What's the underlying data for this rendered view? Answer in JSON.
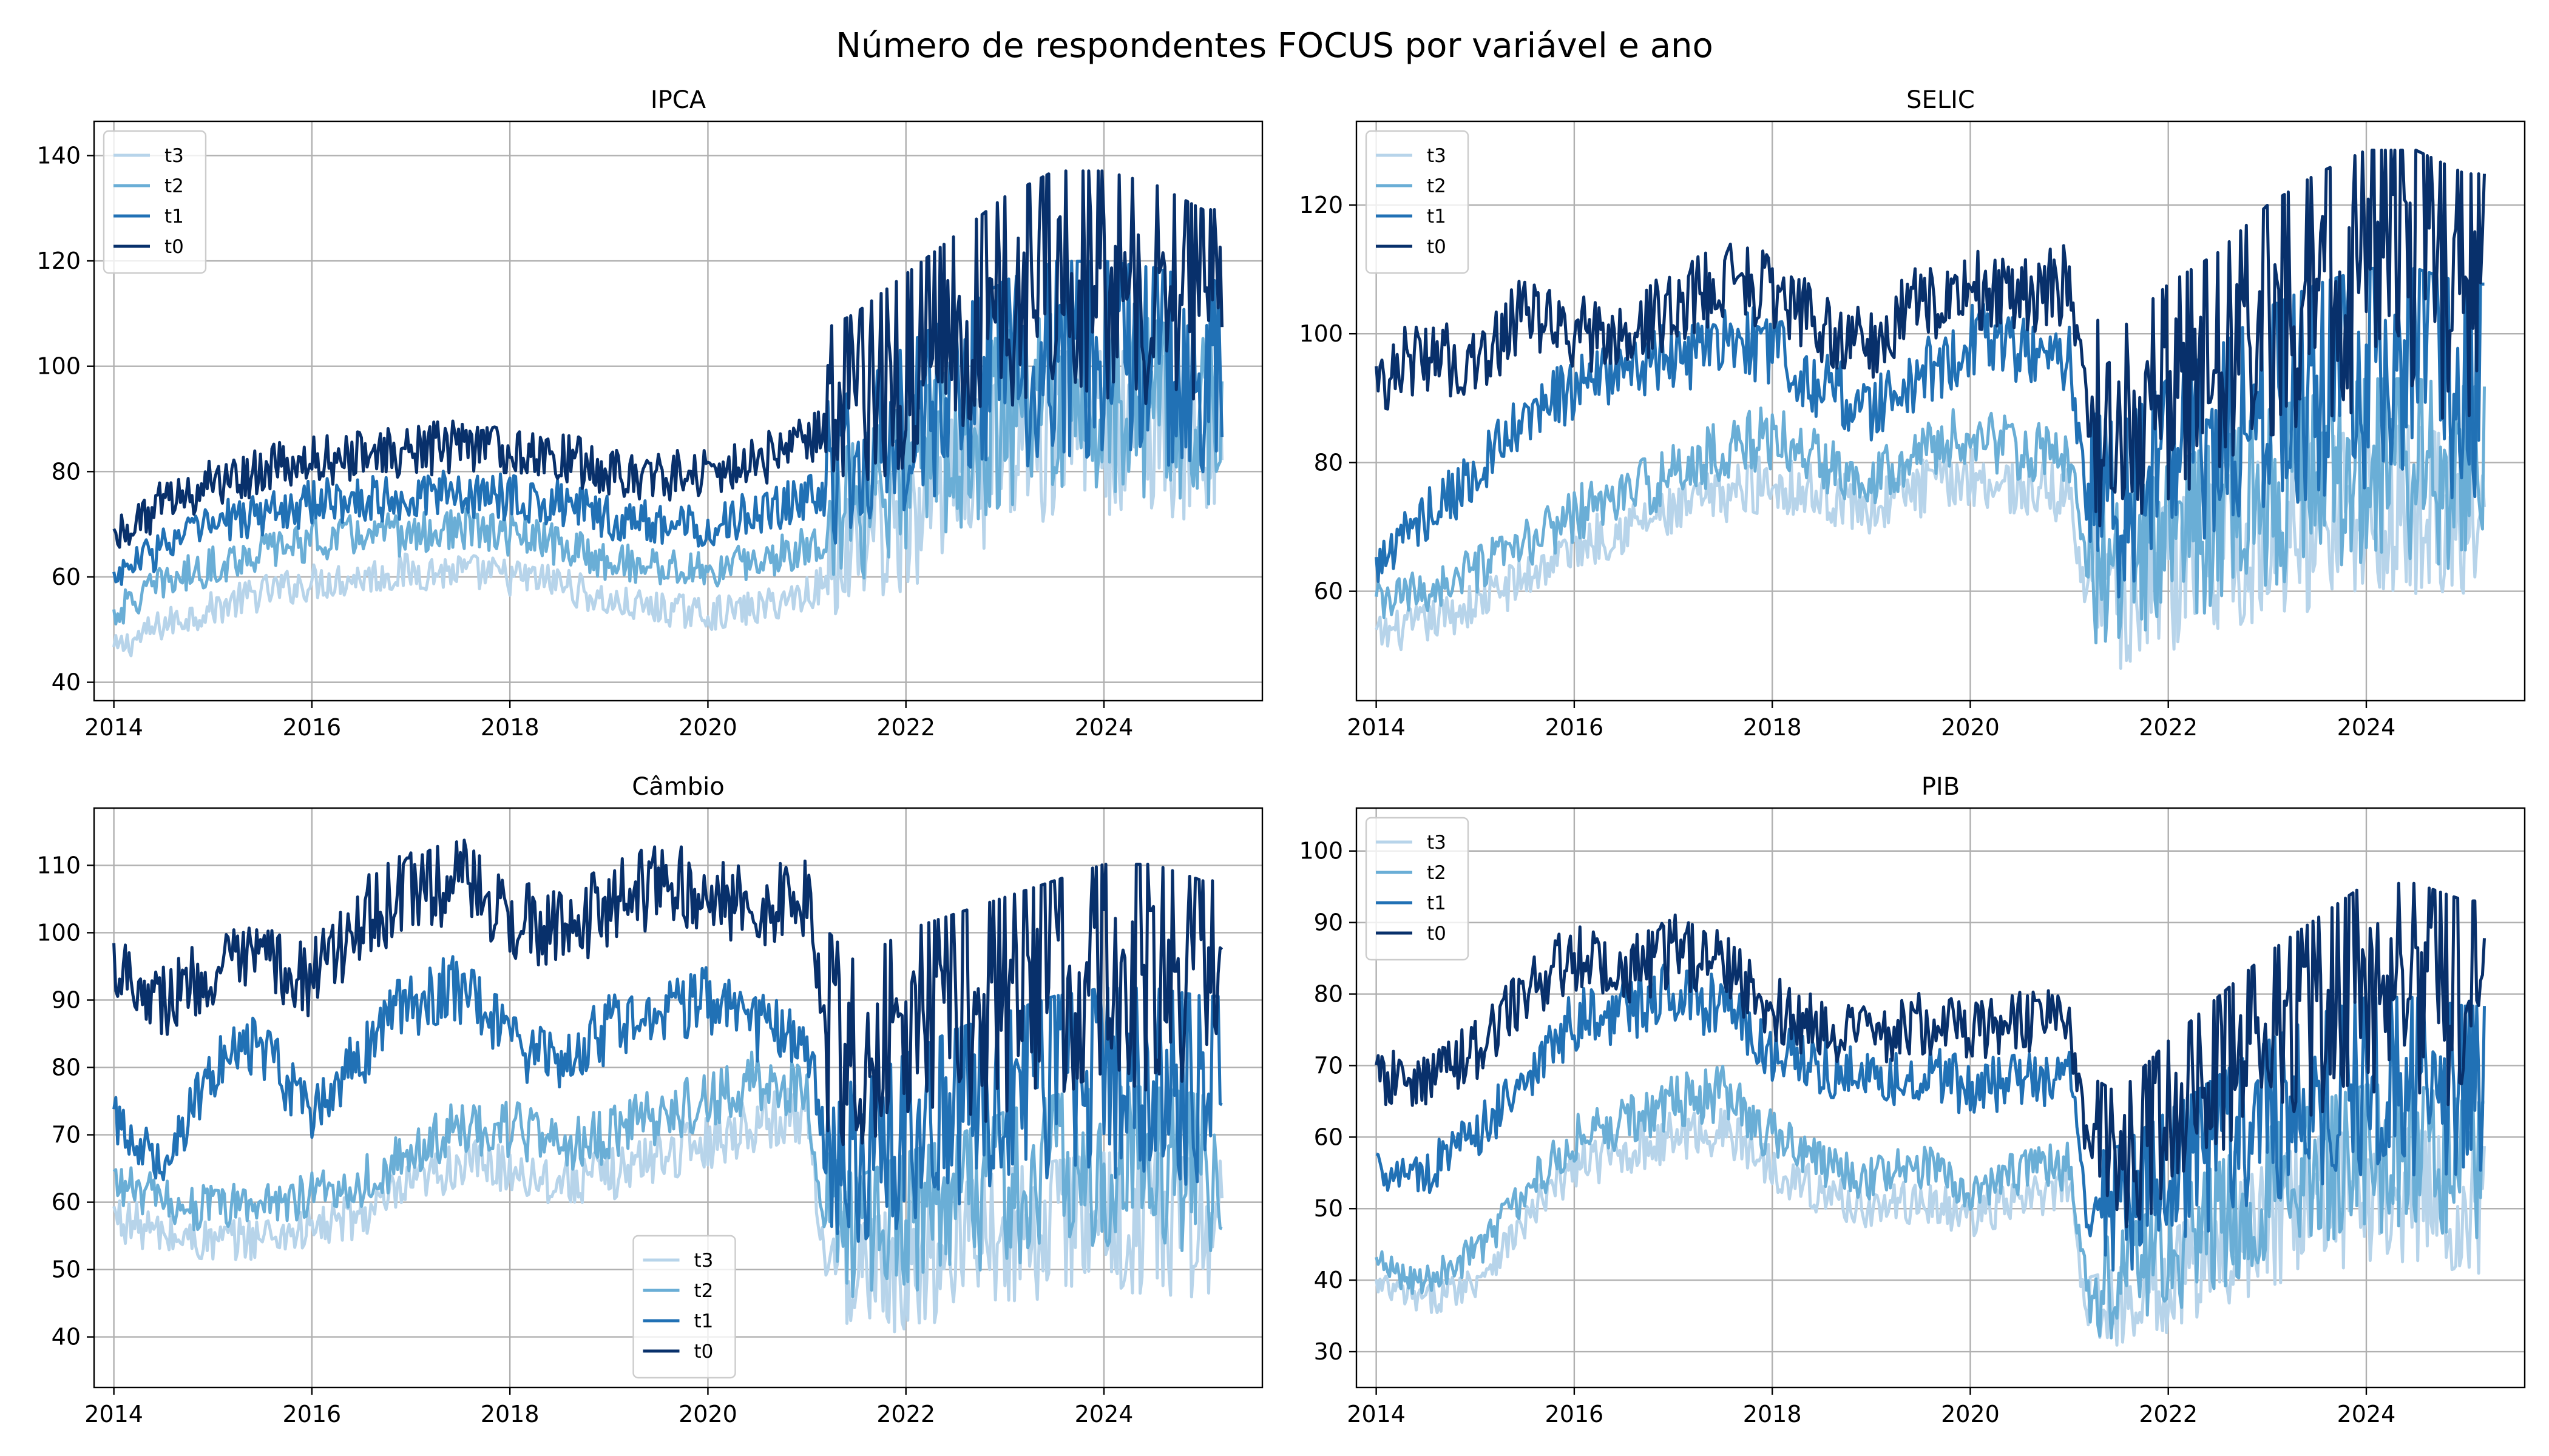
{
  "figure": {
    "title": "Número de respondentes FOCUS por variável e ano"
  },
  "chart_data": [
    {
      "type": "line",
      "title": "IPCA",
      "xlabel": "",
      "ylabel": "",
      "xlim": [
        2013.8,
        2025.6
      ],
      "ylim": [
        36.5,
        146.5
      ],
      "xticks": [
        2014,
        2016,
        2018,
        2020,
        2022,
        2024
      ],
      "yticks": [
        40,
        60,
        80,
        100,
        120,
        140
      ],
      "grid": true,
      "legend_position": "upper left",
      "series": [
        {
          "name": "t3",
          "color": "#b7d4ea",
          "x": [
            2014,
            2014.5,
            2015,
            2015.5,
            2016,
            2016.5,
            2017,
            2017.5,
            2018,
            2018.5,
            2019,
            2019.5,
            2020,
            2020.5,
            2021,
            2021.5,
            2022,
            2022.5,
            2023,
            2023.5,
            2024,
            2024.5,
            2025,
            2025.2
          ],
          "values": [
            46,
            51,
            54,
            57,
            59,
            60,
            61,
            61,
            60,
            59,
            55,
            54,
            53,
            54,
            57,
            62,
            66,
            74,
            80,
            84,
            84,
            84,
            80,
            80
          ]
        },
        {
          "name": "t2",
          "color": "#6aaed6",
          "x": [
            2014,
            2014.5,
            2015,
            2015.5,
            2016,
            2016.5,
            2017,
            2017.5,
            2018,
            2018.5,
            2019,
            2019.5,
            2020,
            2020.5,
            2021,
            2021.5,
            2022,
            2022.5,
            2023,
            2023.5,
            2024,
            2024.5,
            2025,
            2025.2
          ],
          "values": [
            53,
            59,
            62,
            65,
            67,
            68,
            68,
            69,
            68,
            66,
            63,
            62,
            61,
            63,
            66,
            70,
            76,
            82,
            87,
            90,
            90,
            89,
            86,
            86
          ]
        },
        {
          "name": "t1",
          "color": "#2171b5",
          "x": [
            2014,
            2014.5,
            2015,
            2015.5,
            2016,
            2016.5,
            2017,
            2017.5,
            2018,
            2018.5,
            2019,
            2019.5,
            2020,
            2020.5,
            2021,
            2021.5,
            2022,
            2022.5,
            2023,
            2023.5,
            2024,
            2024.5,
            2025,
            2025.2
          ],
          "values": [
            60,
            66,
            70,
            72,
            74,
            75,
            75,
            76,
            75,
            74,
            71,
            70,
            70,
            72,
            75,
            78,
            85,
            90,
            95,
            98,
            98,
            97,
            95,
            95
          ]
        },
        {
          "name": "t0",
          "color": "#08306b",
          "x": [
            2014,
            2014.5,
            2015,
            2015.5,
            2016,
            2016.5,
            2017,
            2017.5,
            2018,
            2018.5,
            2019,
            2019.5,
            2020,
            2020.5,
            2021,
            2021.5,
            2022,
            2022.5,
            2023,
            2023.5,
            2024,
            2024.5,
            2025,
            2025.2
          ],
          "values": [
            68,
            74,
            78,
            80,
            82,
            83,
            84,
            85,
            84,
            83,
            80,
            79,
            80,
            82,
            86,
            90,
            96,
            102,
            108,
            112,
            112,
            110,
            106,
            106
          ]
        }
      ]
    },
    {
      "type": "line",
      "title": "SELIC",
      "xlabel": "",
      "ylabel": "",
      "xlim": [
        2013.8,
        2025.6
      ],
      "ylim": [
        43,
        133
      ],
      "xticks": [
        2014,
        2016,
        2018,
        2020,
        2022,
        2024
      ],
      "yticks": [
        60,
        80,
        100,
        120
      ],
      "grid": true,
      "legend_position": "upper left",
      "series": [
        {
          "name": "t3",
          "color": "#b7d4ea",
          "x": [
            2014,
            2014.5,
            2015,
            2015.5,
            2016,
            2016.5,
            2017,
            2017.5,
            2018,
            2018.5,
            2019,
            2019.5,
            2020,
            2020.5,
            2021,
            2021.2,
            2021.5,
            2022,
            2022.5,
            2023,
            2023.5,
            2024,
            2024.5,
            2025,
            2025.2
          ],
          "values": [
            53,
            55,
            58,
            62,
            67,
            70,
            72,
            75,
            77,
            75,
            73,
            76,
            78,
            76,
            75,
            58,
            56,
            60,
            63,
            66,
            68,
            70,
            70,
            68,
            68
          ]
        },
        {
          "name": "t2",
          "color": "#6aaed6",
          "x": [
            2014,
            2014.5,
            2015,
            2015.5,
            2016,
            2016.5,
            2017,
            2017.5,
            2018,
            2018.5,
            2019,
            2019.5,
            2020,
            2020.5,
            2021,
            2021.2,
            2021.5,
            2022,
            2022.5,
            2023,
            2023.5,
            2024,
            2024.5,
            2025,
            2025.2
          ],
          "values": [
            58,
            60,
            63,
            67,
            72,
            75,
            78,
            82,
            84,
            80,
            78,
            82,
            84,
            82,
            80,
            62,
            60,
            65,
            68,
            72,
            74,
            76,
            76,
            75,
            75
          ]
        },
        {
          "name": "t1",
          "color": "#2171b5",
          "x": [
            2014,
            2014.5,
            2015,
            2015.5,
            2016,
            2016.5,
            2017,
            2017.5,
            2018,
            2018.5,
            2019,
            2019.5,
            2020,
            2020.5,
            2021,
            2021.2,
            2021.5,
            2022,
            2022.5,
            2023,
            2023.5,
            2024,
            2024.5,
            2025,
            2025.2
          ],
          "values": [
            64,
            72,
            78,
            86,
            92,
            94,
            96,
            99,
            98,
            92,
            88,
            93,
            99,
            98,
            96,
            72,
            70,
            76,
            80,
            85,
            88,
            90,
            90,
            88,
            88
          ]
        },
        {
          "name": "t0",
          "color": "#08306b",
          "x": [
            2014,
            2014.5,
            2015,
            2015.5,
            2016,
            2016.5,
            2017,
            2017.5,
            2018,
            2018.5,
            2019,
            2019.5,
            2020,
            2020.5,
            2021,
            2021.2,
            2021.5,
            2022,
            2022.5,
            2023,
            2023.5,
            2024,
            2024.5,
            2025,
            2025.2
          ],
          "values": [
            93,
            97,
            95,
            103,
            100,
            99,
            104,
            109,
            107,
            101,
            98,
            105,
            107,
            105,
            108,
            84,
            82,
            88,
            92,
            98,
            102,
            105,
            105,
            102,
            102
          ]
        }
      ]
    },
    {
      "type": "line",
      "title": "Câmbio",
      "xlabel": "",
      "ylabel": "",
      "xlim": [
        2013.8,
        2025.6
      ],
      "ylim": [
        32.5,
        118.5
      ],
      "xticks": [
        2014,
        2016,
        2018,
        2020,
        2022,
        2024
      ],
      "yticks": [
        40,
        50,
        60,
        70,
        80,
        90,
        100,
        110
      ],
      "grid": true,
      "legend_position": "lower center",
      "series": [
        {
          "name": "t3",
          "color": "#b7d4ea",
          "x": [
            2014,
            2014.5,
            2015,
            2015.5,
            2016,
            2016.5,
            2017,
            2017.5,
            2018,
            2018.5,
            2019,
            2019.5,
            2020,
            2020.5,
            2021,
            2021.2,
            2021.5,
            2022,
            2022.5,
            2023,
            2023.5,
            2024,
            2024.5,
            2025,
            2025.2
          ],
          "values": [
            58,
            55,
            54,
            55,
            56,
            58,
            62,
            66,
            65,
            63,
            64,
            67,
            69,
            72,
            73,
            50,
            46,
            49,
            51,
            53,
            54,
            55,
            55,
            54,
            54
          ]
        },
        {
          "name": "t2",
          "color": "#6aaed6",
          "x": [
            2014,
            2014.5,
            2015,
            2015.5,
            2016,
            2016.5,
            2017,
            2017.5,
            2018,
            2018.5,
            2019,
            2019.5,
            2020,
            2020.5,
            2021,
            2021.2,
            2021.5,
            2022,
            2022.5,
            2023,
            2023.5,
            2024,
            2024.5,
            2025,
            2025.2
          ],
          "values": [
            63,
            60,
            59,
            60,
            61,
            63,
            67,
            71,
            71,
            68,
            70,
            73,
            75,
            78,
            77,
            55,
            52,
            55,
            57,
            60,
            62,
            63,
            63,
            62,
            62
          ]
        },
        {
          "name": "t1",
          "color": "#2171b5",
          "x": [
            2014,
            2014.5,
            2015,
            2015.5,
            2016,
            2016.5,
            2017,
            2017.5,
            2018,
            2018.5,
            2019,
            2019.5,
            2020,
            2020.5,
            2021,
            2021.2,
            2021.5,
            2022,
            2022.5,
            2023,
            2023.5,
            2024,
            2024.5,
            2025,
            2025.2
          ],
          "values": [
            72,
            66,
            80,
            83,
            72,
            82,
            90,
            92,
            84,
            80,
            86,
            89,
            90,
            86,
            85,
            66,
            63,
            67,
            70,
            72,
            74,
            75,
            75,
            74,
            74
          ]
        },
        {
          "name": "t0",
          "color": "#08306b",
          "x": [
            2014,
            2014.5,
            2015,
            2015.5,
            2016,
            2016.5,
            2017,
            2017.5,
            2018,
            2018.5,
            2019,
            2019.5,
            2020,
            2020.5,
            2021,
            2021.2,
            2021.5,
            2022,
            2022.5,
            2023,
            2023.5,
            2024,
            2024.5,
            2025,
            2025.2
          ],
          "values": [
            96,
            90,
            94,
            96,
            93,
            102,
            106,
            108,
            102,
            100,
            104,
            107,
            106,
            104,
            106,
            82,
            78,
            82,
            84,
            86,
            88,
            90,
            90,
            88,
            88
          ]
        }
      ]
    },
    {
      "type": "line",
      "title": "PIB",
      "xlabel": "",
      "ylabel": "",
      "xlim": [
        2013.8,
        2025.6
      ],
      "ylim": [
        25,
        106
      ],
      "xticks": [
        2014,
        2016,
        2018,
        2020,
        2022,
        2024
      ],
      "yticks": [
        30,
        40,
        50,
        60,
        70,
        80,
        90,
        100
      ],
      "grid": true,
      "legend_position": "upper left",
      "series": [
        {
          "name": "t3",
          "color": "#b7d4ea",
          "x": [
            2014,
            2014.5,
            2015,
            2015.5,
            2016,
            2016.5,
            2017,
            2017.5,
            2018,
            2018.5,
            2019,
            2019.5,
            2020,
            2020.5,
            2021,
            2021.2,
            2021.5,
            2022,
            2022.5,
            2023,
            2023.5,
            2024,
            2024.5,
            2025,
            2025.2
          ],
          "values": [
            39,
            37,
            40,
            48,
            56,
            58,
            60,
            61,
            56,
            52,
            50,
            51,
            49,
            51,
            53,
            33,
            34,
            38,
            42,
            46,
            49,
            50,
            50,
            48,
            48
          ]
        },
        {
          "name": "t2",
          "color": "#6aaed6",
          "x": [
            2014,
            2014.5,
            2015,
            2015.5,
            2016,
            2016.5,
            2017,
            2017.5,
            2018,
            2018.5,
            2019,
            2019.5,
            2020,
            2020.5,
            2021,
            2021.2,
            2021.5,
            2022,
            2022.5,
            2023,
            2023.5,
            2024,
            2024.5,
            2025,
            2025.2
          ],
          "values": [
            42,
            40,
            44,
            52,
            60,
            62,
            65,
            66,
            60,
            56,
            54,
            56,
            53,
            55,
            56,
            37,
            38,
            42,
            46,
            50,
            53,
            55,
            55,
            53,
            53
          ]
        },
        {
          "name": "t1",
          "color": "#2171b5",
          "x": [
            2014,
            2014.5,
            2015,
            2015.5,
            2016,
            2016.5,
            2017,
            2017.5,
            2018,
            2018.5,
            2019,
            2019.5,
            2020,
            2020.5,
            2021,
            2021.2,
            2021.5,
            2022,
            2022.5,
            2023,
            2023.5,
            2024,
            2024.5,
            2025,
            2025.2
          ],
          "values": [
            56,
            55,
            60,
            68,
            76,
            78,
            80,
            78,
            72,
            70,
            68,
            69,
            67,
            68,
            68,
            47,
            48,
            52,
            56,
            60,
            63,
            65,
            65,
            64,
            64
          ]
        },
        {
          "name": "t0",
          "color": "#08306b",
          "x": [
            2014,
            2014.5,
            2015,
            2015.5,
            2016,
            2016.5,
            2017,
            2017.5,
            2018,
            2018.5,
            2019,
            2019.5,
            2020,
            2020.5,
            2021,
            2021.2,
            2021.5,
            2022,
            2022.5,
            2023,
            2023.5,
            2024,
            2024.5,
            2025,
            2025.2
          ],
          "values": [
            68,
            68,
            72,
            80,
            85,
            83,
            86,
            84,
            78,
            75,
            74,
            76,
            75,
            76,
            76,
            56,
            54,
            60,
            65,
            70,
            74,
            78,
            78,
            76,
            76
          ]
        }
      ]
    }
  ]
}
